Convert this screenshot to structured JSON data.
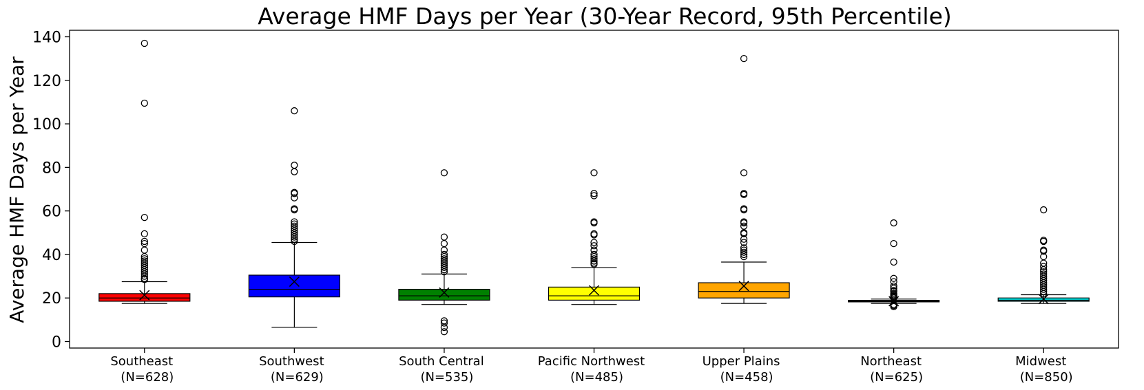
{
  "chart_data": {
    "type": "box",
    "title": "Average HMF Days per Year (30-Year Record, 95th Percentile)",
    "xlabel": "",
    "ylabel": "Average HMF Days per Year",
    "ylim": [
      -3,
      143
    ],
    "yticks": [
      0,
      20,
      40,
      60,
      80,
      100,
      120,
      140
    ],
    "grid": false,
    "mean_marker": "x",
    "categories": [
      {
        "name": "Southeast",
        "n": "(N=628)",
        "color": "#ff0000",
        "whisker_low": 17.5,
        "q1": 18.5,
        "median": 20.0,
        "q3": 22.0,
        "whisker_high": 27.5,
        "mean": 21.3,
        "outliers": [
          137,
          109.5,
          57,
          49.5,
          46,
          45,
          42,
          39,
          38,
          37,
          36,
          35,
          34,
          33,
          32,
          31,
          30,
          29,
          28.5
        ]
      },
      {
        "name": "Southwest",
        "n": "(N=629)",
        "color": "#0000ff",
        "whisker_low": 6.5,
        "q1": 20.5,
        "median": 24.0,
        "q3": 30.5,
        "whisker_high": 45.5,
        "mean": 27.5,
        "outliers": [
          106,
          81,
          78,
          68.5,
          68,
          66,
          61,
          60.5,
          55,
          54,
          53,
          52,
          51,
          50,
          49,
          48,
          47,
          46
        ]
      },
      {
        "name": "South Central",
        "n": "(N=535)",
        "color": "#008000",
        "whisker_low": 17.0,
        "q1": 19.0,
        "median": 21.0,
        "q3": 24.0,
        "whisker_high": 31.0,
        "mean": 22.5,
        "outliers": [
          77.5,
          48,
          45,
          42,
          40,
          39,
          38,
          37,
          36,
          35,
          34,
          33,
          32,
          9.5,
          8.5,
          6.5,
          4.5
        ]
      },
      {
        "name": "Pacific Northwest",
        "n": "(N=485)",
        "color": "#ffff00",
        "whisker_low": 17.0,
        "q1": 19.0,
        "median": 21.0,
        "q3": 25.0,
        "whisker_high": 34.0,
        "mean": 23.5,
        "outliers": [
          77.5,
          68,
          67,
          55,
          54.5,
          49.5,
          49,
          45.5,
          44,
          42,
          40,
          39,
          38,
          37,
          36,
          35.5
        ]
      },
      {
        "name": "Upper Plains",
        "n": "(N=458)",
        "color": "#ffa500",
        "whisker_low": 17.5,
        "q1": 20.0,
        "median": 23.0,
        "q3": 27.0,
        "whisker_high": 36.5,
        "mean": 25.5,
        "outliers": [
          130,
          77.5,
          68,
          67.5,
          61,
          60.5,
          55,
          54.5,
          53,
          50,
          49.5,
          47,
          45.5,
          43,
          42,
          41,
          40,
          39
        ]
      },
      {
        "name": "Northeast",
        "n": "(N=625)",
        "color": "#000000",
        "whisker_low": 17.5,
        "q1": 18.2,
        "median": 18.5,
        "q3": 18.9,
        "whisker_high": 19.5,
        "mean": 18.5,
        "outliers": [
          54.5,
          45,
          36.5,
          29,
          27.5,
          25.5,
          24.5,
          23.5,
          23,
          22,
          21.5,
          21,
          20.5,
          20,
          17,
          16.5,
          16
        ]
      },
      {
        "name": "Midwest",
        "n": "(N=850)",
        "color": "#00ffff",
        "whisker_low": 17.5,
        "q1": 18.5,
        "median": 19.0,
        "q3": 20.0,
        "whisker_high": 21.5,
        "mean": 19.5,
        "outliers": [
          60.5,
          46.5,
          46,
          42,
          41.5,
          39,
          36,
          34.5,
          33,
          32,
          31,
          30,
          29,
          28,
          27,
          26,
          25,
          24,
          23,
          22
        ]
      }
    ]
  }
}
